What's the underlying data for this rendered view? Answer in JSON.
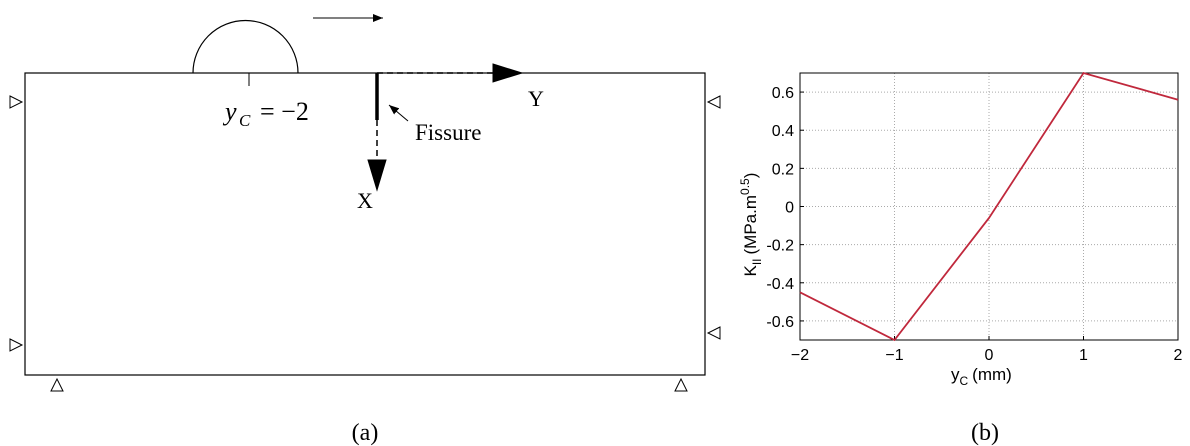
{
  "diagram": {
    "yc_symbol": "y",
    "yc_sub": "C",
    "yc_value": "= −2",
    "crack_label": "Fissure",
    "axis_y": "Y",
    "axis_x": "X"
  },
  "captions": [
    "(a)",
    "(b)"
  ],
  "chart_data": {
    "type": "line",
    "x": [
      -2,
      -1,
      0,
      1,
      2
    ],
    "series": [
      {
        "color": "#c0283c",
        "values": [
          -0.45,
          -0.7,
          -0.06,
          0.7,
          0.56
        ]
      }
    ],
    "xlim": [
      -2,
      2
    ],
    "xticks": [
      {
        "value": -2,
        "label": "−2"
      },
      {
        "value": -1,
        "label": "−1"
      },
      0,
      1,
      2
    ],
    "ylim": [
      -0.7,
      0.7
    ],
    "yticks": [
      {
        "value": -0.6,
        "label": "-0.6"
      },
      {
        "value": -0.4,
        "label": "-0.4"
      },
      {
        "value": -0.2,
        "label": "-0.2"
      },
      0,
      0.2,
      0.4,
      0.6
    ],
    "x_label": {
      "main": "y",
      "sub": "C",
      "unit": "(mm)"
    },
    "y_label": {
      "main": "K",
      "sub": "II",
      "unit": "(MPa.m",
      "sup": "0.5",
      "close": ")"
    },
    "grid": true
  }
}
